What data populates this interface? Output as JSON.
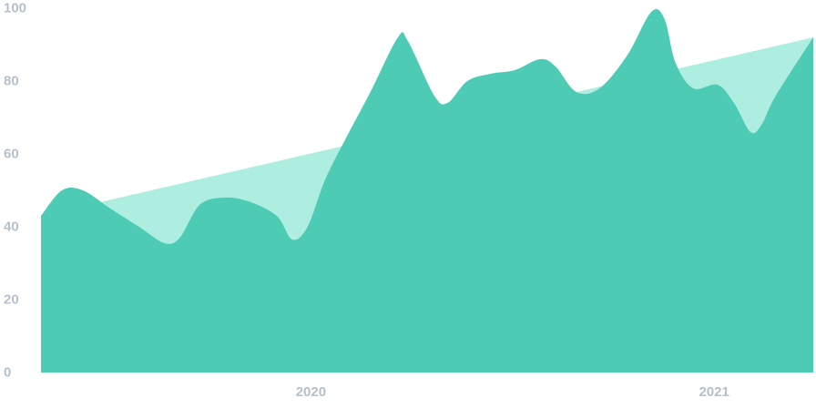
{
  "chart_data": {
    "type": "area",
    "title": "",
    "xlabel": "",
    "ylabel": "",
    "ylim": [
      0,
      100
    ],
    "xlim": [
      "2019-05-01",
      "2021-04-01"
    ],
    "yticks": [
      0,
      20,
      40,
      60,
      80,
      100
    ],
    "xticks": [
      {
        "date": "2020-01-01",
        "label": "2020"
      },
      {
        "date": "2021-01-01",
        "label": "2021"
      }
    ],
    "grid": false,
    "legend": "none",
    "colors": {
      "trend": "#adeee1",
      "actual": "#4ecbb5",
      "tick_text": "#b4c0ca"
    },
    "series": [
      {
        "role": "trend",
        "smooth": false,
        "points": [
          {
            "date": "2019-05-01",
            "y": 43
          },
          {
            "date": "2021-04-01",
            "y": 92
          }
        ]
      },
      {
        "role": "actual",
        "smooth": true,
        "points": [
          {
            "date": "2019-05-01",
            "y": 43
          },
          {
            "date": "2019-05-20",
            "y": 50
          },
          {
            "date": "2019-06-08",
            "y": 50
          },
          {
            "date": "2019-07-03",
            "y": 45
          },
          {
            "date": "2019-07-29",
            "y": 40
          },
          {
            "date": "2019-08-21",
            "y": 35.5
          },
          {
            "date": "2019-09-04",
            "y": 37
          },
          {
            "date": "2019-09-22",
            "y": 46
          },
          {
            "date": "2019-10-14",
            "y": 48
          },
          {
            "date": "2019-11-05",
            "y": 47
          },
          {
            "date": "2019-12-01",
            "y": 43
          },
          {
            "date": "2019-12-15",
            "y": 36.5
          },
          {
            "date": "2019-12-29",
            "y": 40
          },
          {
            "date": "2020-01-14",
            "y": 53
          },
          {
            "date": "2020-02-03",
            "y": 65
          },
          {
            "date": "2020-02-24",
            "y": 77
          },
          {
            "date": "2020-03-20",
            "y": 92
          },
          {
            "date": "2020-03-29",
            "y": 91
          },
          {
            "date": "2020-04-22",
            "y": 76
          },
          {
            "date": "2020-05-04",
            "y": 74
          },
          {
            "date": "2020-05-22",
            "y": 80
          },
          {
            "date": "2020-06-12",
            "y": 82
          },
          {
            "date": "2020-07-04",
            "y": 83
          },
          {
            "date": "2020-07-27",
            "y": 86
          },
          {
            "date": "2020-08-10",
            "y": 84
          },
          {
            "date": "2020-08-29",
            "y": 77
          },
          {
            "date": "2020-09-19",
            "y": 78
          },
          {
            "date": "2020-10-14",
            "y": 87
          },
          {
            "date": "2020-11-05",
            "y": 99
          },
          {
            "date": "2020-11-17",
            "y": 97
          },
          {
            "date": "2020-11-27",
            "y": 85
          },
          {
            "date": "2020-12-13",
            "y": 78
          },
          {
            "date": "2021-01-04",
            "y": 79
          },
          {
            "date": "2021-01-19",
            "y": 74
          },
          {
            "date": "2021-02-03",
            "y": 66
          },
          {
            "date": "2021-02-13",
            "y": 68
          },
          {
            "date": "2021-02-26",
            "y": 76
          },
          {
            "date": "2021-04-01",
            "y": 92
          }
        ]
      }
    ]
  }
}
